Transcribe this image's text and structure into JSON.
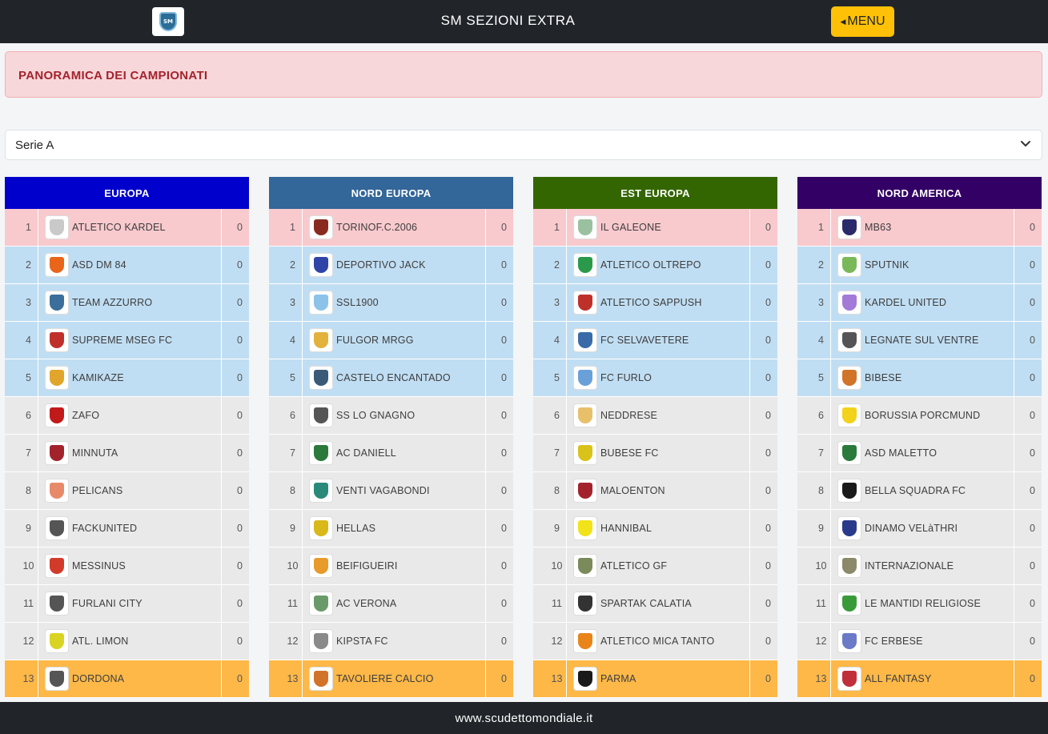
{
  "navbar": {
    "title": "SM SEZIONI EXTRA",
    "menu_label": "MENU",
    "logo_text": "SM"
  },
  "alert": {
    "text": "PANORAMICA DEI CAMPIONATI"
  },
  "league_select": {
    "value": "Serie A"
  },
  "footer": {
    "text": "www.scudettomondiale.it"
  },
  "colors": {
    "europa": "#0000cc",
    "nord_europa": "#336699",
    "est_europa": "#336600",
    "nord_america": "#330066",
    "zone_top": "#f8c9cd",
    "zone_blue": "#c0def3",
    "zone_mid": "#e9e9e9",
    "zone_bottom": "#fdb848"
  },
  "groups": [
    {
      "name": "EUROPA",
      "color": "#0000cc",
      "teams": [
        {
          "pos": "1",
          "name": "ATLETICO KARDEL",
          "pts": "0",
          "crest": "#c9c9c9"
        },
        {
          "pos": "2",
          "name": "ASD DM 84",
          "pts": "0",
          "crest": "#e8651a"
        },
        {
          "pos": "3",
          "name": "TEAM AZZURRO",
          "pts": "0",
          "crest": "#3b6e9a"
        },
        {
          "pos": "4",
          "name": "SUPREME MSEG FC",
          "pts": "0",
          "crest": "#c0302a"
        },
        {
          "pos": "5",
          "name": "KAMIKAZE",
          "pts": "0",
          "crest": "#e0a52a"
        },
        {
          "pos": "6",
          "name": "ZAFO",
          "pts": "0",
          "crest": "#c21a1a"
        },
        {
          "pos": "7",
          "name": "MINNUTA",
          "pts": "0",
          "crest": "#a3232d"
        },
        {
          "pos": "8",
          "name": "PELICANS",
          "pts": "0",
          "crest": "#e88a6a"
        },
        {
          "pos": "9",
          "name": "FACKUNITED",
          "pts": "0",
          "crest": "#555555"
        },
        {
          "pos": "10",
          "name": "MESSINUS",
          "pts": "0",
          "crest": "#d23b2a"
        },
        {
          "pos": "11",
          "name": "FURLANI CITY",
          "pts": "0",
          "crest": "#555555"
        },
        {
          "pos": "12",
          "name": "ATL. LIMON",
          "pts": "0",
          "crest": "#d9d423"
        },
        {
          "pos": "13",
          "name": "DORDONA",
          "pts": "0",
          "crest": "#555555"
        }
      ]
    },
    {
      "name": "NORD EUROPA",
      "color": "#336699",
      "teams": [
        {
          "pos": "1",
          "name": "TORINOF.C.2006",
          "pts": "0",
          "crest": "#8a2a1e"
        },
        {
          "pos": "2",
          "name": "DEPORTIVO JACK",
          "pts": "0",
          "crest": "#3044a8"
        },
        {
          "pos": "3",
          "name": "SSL1900",
          "pts": "0",
          "crest": "#8dc3e8"
        },
        {
          "pos": "4",
          "name": "FULGOR MRGG",
          "pts": "0",
          "crest": "#e3b23c"
        },
        {
          "pos": "5",
          "name": "CASTELO ENCANTADO",
          "pts": "0",
          "crest": "#3a5a78"
        },
        {
          "pos": "6",
          "name": "SS LO GNAGNO",
          "pts": "0",
          "crest": "#555555"
        },
        {
          "pos": "7",
          "name": "AC DANIELL",
          "pts": "0",
          "crest": "#2b7a3c"
        },
        {
          "pos": "8",
          "name": "VENTI VAGABONDI",
          "pts": "0",
          "crest": "#2a8a7a"
        },
        {
          "pos": "9",
          "name": "HELLAS",
          "pts": "0",
          "crest": "#d9b81a"
        },
        {
          "pos": "10",
          "name": "BEIFIGUEIRI",
          "pts": "0",
          "crest": "#e89a2a"
        },
        {
          "pos": "11",
          "name": "AC VERONA",
          "pts": "0",
          "crest": "#6a9a6a"
        },
        {
          "pos": "12",
          "name": "KIPSTA FC",
          "pts": "0",
          "crest": "#8a8a8a"
        },
        {
          "pos": "13",
          "name": "TAVOLIERE CALCIO",
          "pts": "0",
          "crest": "#d2732a"
        }
      ]
    },
    {
      "name": "EST EUROPA",
      "color": "#336600",
      "teams": [
        {
          "pos": "1",
          "name": "IL GALEONE",
          "pts": "0",
          "crest": "#9ac0a0"
        },
        {
          "pos": "2",
          "name": "ATLETICO OLTREPO",
          "pts": "0",
          "crest": "#2a9a4a"
        },
        {
          "pos": "3",
          "name": "ATLETICO SAPPUSH",
          "pts": "0",
          "crest": "#c0302a"
        },
        {
          "pos": "4",
          "name": "FC SELVAVETERE",
          "pts": "0",
          "crest": "#3a6aa8"
        },
        {
          "pos": "5",
          "name": "FC FURLO",
          "pts": "0",
          "crest": "#6aa0d8"
        },
        {
          "pos": "6",
          "name": "NEDDRESE",
          "pts": "0",
          "crest": "#e8c06a"
        },
        {
          "pos": "7",
          "name": "BUBESE FC",
          "pts": "0",
          "crest": "#d9c21a"
        },
        {
          "pos": "8",
          "name": "MALOENTON",
          "pts": "0",
          "crest": "#a3232d"
        },
        {
          "pos": "9",
          "name": "HANNIBAL",
          "pts": "0",
          "crest": "#f2e21a"
        },
        {
          "pos": "10",
          "name": "ATLETICO GF",
          "pts": "0",
          "crest": "#7a8a5a"
        },
        {
          "pos": "11",
          "name": "SPARTAK CALATIA",
          "pts": "0",
          "crest": "#333333"
        },
        {
          "pos": "12",
          "name": "ATLETICO MICA TANTO",
          "pts": "0",
          "crest": "#e8841a"
        },
        {
          "pos": "13",
          "name": "PARMA",
          "pts": "0",
          "crest": "#1a1a1a"
        }
      ]
    },
    {
      "name": "NORD AMERICA",
      "color": "#330066",
      "teams": [
        {
          "pos": "1",
          "name": "MB63",
          "pts": "0",
          "crest": "#2a2a6a"
        },
        {
          "pos": "2",
          "name": "SPUTNIK",
          "pts": "0",
          "crest": "#7ab85a"
        },
        {
          "pos": "3",
          "name": "KARDEL UNITED",
          "pts": "0",
          "crest": "#a37ad8"
        },
        {
          "pos": "4",
          "name": "LEGNATE SUL VENTRE",
          "pts": "0",
          "crest": "#555555"
        },
        {
          "pos": "5",
          "name": "BIBESE",
          "pts": "0",
          "crest": "#d2732a"
        },
        {
          "pos": "6",
          "name": "BORUSSIA PORCMUND",
          "pts": "0",
          "crest": "#f2d21a"
        },
        {
          "pos": "7",
          "name": "ASD MALETTO",
          "pts": "0",
          "crest": "#2a7a3c"
        },
        {
          "pos": "8",
          "name": "BELLA SQUADRA FC",
          "pts": "0",
          "crest": "#1a1a1a"
        },
        {
          "pos": "9",
          "name": "DINAMO VELàTHRI",
          "pts": "0",
          "crest": "#2a3a8a"
        },
        {
          "pos": "10",
          "name": "INTERNAZIONALE",
          "pts": "0",
          "crest": "#8a8a6a"
        },
        {
          "pos": "11",
          "name": "LE MANTIDI RELIGIOSE",
          "pts": "0",
          "crest": "#3a9a3a"
        },
        {
          "pos": "12",
          "name": "FC ERBESE",
          "pts": "0",
          "crest": "#6a7ac8"
        },
        {
          "pos": "13",
          "name": "ALL FANTASY",
          "pts": "0",
          "crest": "#c0303a"
        }
      ]
    }
  ]
}
